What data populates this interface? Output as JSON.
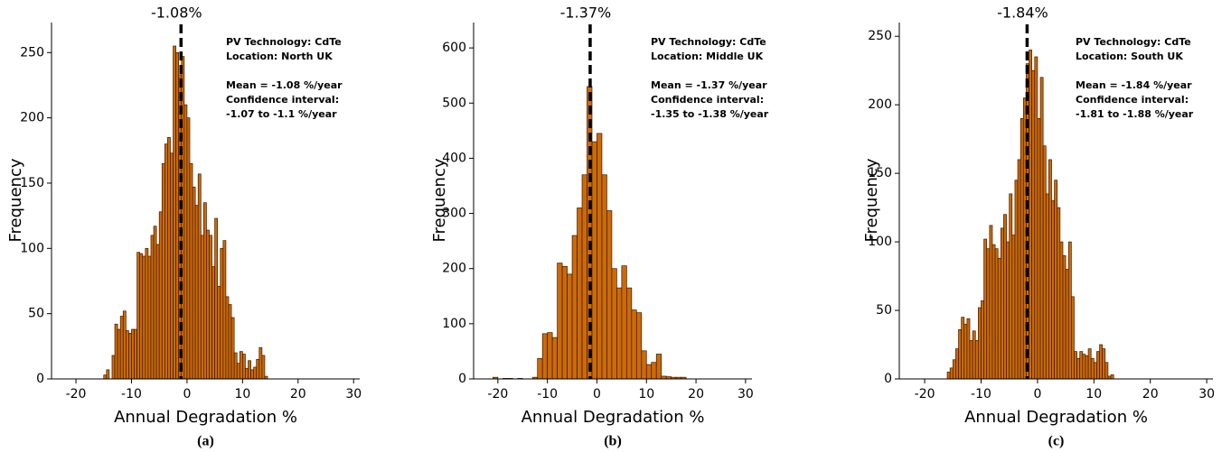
{
  "chart_data": [
    {
      "type": "histogram",
      "caption": "(a)",
      "xlabel": "Annual Degradation %",
      "ylabel": "Frequency",
      "mean": -1.08,
      "mean_label": "-1.08%",
      "annotations": [
        "PV Technology: CdTe",
        "Location: North UK",
        "Mean = -1.08 %/year",
        "Confidence interval:",
        "-1.07 to -1.1 %/year"
      ],
      "color": "#cc6a0a",
      "bins": [
        -15,
        -14.5,
        -14,
        -13.5,
        -13,
        -12.5,
        -12,
        -11.5,
        -11,
        -10.5,
        -10,
        -9.5,
        -9,
        -8.5,
        -8,
        -7.5,
        -7,
        -6.5,
        -6,
        -5.5,
        -5,
        -4.5,
        -4,
        -3.5,
        -3,
        -2.5,
        -2,
        -1.5,
        -1,
        -0.5,
        0,
        0.5,
        1,
        1.5,
        2,
        2.5,
        3,
        3.5,
        4,
        4.5,
        5,
        5.5,
        6,
        6.5,
        7,
        7.5,
        8,
        8.5,
        9,
        9.5,
        10,
        10.5,
        11,
        11.5,
        12,
        12.5,
        13,
        13.5,
        14,
        14.5
      ],
      "counts": [
        3,
        7,
        0,
        18,
        42,
        38,
        48,
        52,
        37,
        35,
        38,
        38,
        97,
        96,
        94,
        100,
        94,
        110,
        117,
        103,
        128,
        165,
        180,
        185,
        173,
        255,
        250,
        233,
        247,
        210,
        200,
        165,
        147,
        133,
        157,
        110,
        135,
        114,
        110,
        86,
        123,
        71,
        100,
        106,
        63,
        57,
        47,
        20,
        12,
        21,
        19,
        8,
        14,
        7,
        9,
        15,
        24,
        18,
        2
      ],
      "xlim": [
        -24.4,
        31.1
      ],
      "ylim": [
        0,
        273
      ],
      "xticks": [
        -20,
        -10,
        0,
        10,
        20,
        30
      ],
      "yticks": [
        0,
        50,
        100,
        150,
        200,
        250
      ]
    },
    {
      "type": "histogram",
      "caption": "(b)",
      "xlabel": "Annual Degradation %",
      "ylabel": "Frequency",
      "mean": -1.37,
      "mean_label": "-1.37%",
      "annotations": [
        "PV Technology: CdTe",
        "Location: Middle UK",
        "Mean = -1.37 %/year",
        "Confidence interval:",
        "-1.35 to -1.38 %/year"
      ],
      "color": "#cc6a0a",
      "bins": [
        -21,
        -20,
        -19,
        -18,
        -17,
        -16,
        -15,
        -14,
        -13,
        -12,
        -11,
        -10,
        -9,
        -8,
        -7,
        -6,
        -5,
        -4,
        -3,
        -2,
        -1,
        0,
        1,
        2,
        3,
        4,
        5,
        6,
        7,
        8,
        9,
        10,
        11,
        12,
        13,
        14,
        15,
        16,
        17,
        18
      ],
      "counts": [
        3,
        0,
        1,
        1,
        0,
        1,
        0,
        0,
        3,
        37,
        82,
        84,
        75,
        210,
        204,
        190,
        260,
        310,
        370,
        530,
        430,
        445,
        370,
        305,
        200,
        165,
        205,
        165,
        125,
        120,
        51,
        26,
        30,
        45,
        5,
        4,
        3,
        3,
        3
      ],
      "xlim": [
        -24.9,
        31.3
      ],
      "ylim": [
        0,
        646
      ],
      "xticks": [
        -20,
        -10,
        0,
        10,
        20,
        30
      ],
      "yticks": [
        0,
        100,
        200,
        300,
        400,
        500,
        600
      ]
    },
    {
      "type": "histogram",
      "caption": "(c)",
      "xlabel": "Annual Degradation %",
      "ylabel": "Frequency",
      "mean": -1.84,
      "mean_label": "-1.84%",
      "annotations": [
        "PV Technology: CdTe",
        "Location: South UK",
        "Mean = -1.84 %/year",
        "Confidence interval:",
        "-1.81 to -1.88 %/year"
      ],
      "color": "#cc6a0a",
      "bins": [
        -16,
        -15.5,
        -15,
        -14.5,
        -14,
        -13.5,
        -13,
        -12.5,
        -12,
        -11.5,
        -11,
        -10.5,
        -10,
        -9.5,
        -9,
        -8.5,
        -8,
        -7.5,
        -7,
        -6.5,
        -6,
        -5.5,
        -5,
        -4.5,
        -4,
        -3.5,
        -3,
        -2.5,
        -2,
        -1.5,
        -1,
        -0.5,
        0,
        0.5,
        1,
        1.5,
        2,
        2.5,
        3,
        3.5,
        4,
        4.5,
        5,
        5.5,
        6,
        6.5,
        7,
        7.5,
        8,
        8.5,
        9,
        9.5,
        10,
        10.5,
        11,
        11.5,
        12,
        12.5,
        13,
        13.5
      ],
      "counts": [
        5,
        8,
        14,
        22,
        36,
        45,
        40,
        44,
        28,
        35,
        28,
        52,
        57,
        102,
        95,
        112,
        98,
        95,
        88,
        110,
        120,
        100,
        135,
        105,
        145,
        160,
        190,
        205,
        230,
        240,
        225,
        235,
        190,
        220,
        170,
        135,
        160,
        130,
        145,
        125,
        100,
        90,
        80,
        100,
        60,
        20,
        15,
        20,
        18,
        17,
        22,
        15,
        12,
        20,
        25,
        22,
        12,
        2,
        3
      ],
      "xlim": [
        -24.5,
        31.1
      ],
      "ylim": [
        0,
        260
      ],
      "xticks": [
        -20,
        -10,
        0,
        10,
        20,
        30
      ],
      "yticks": [
        0,
        50,
        100,
        150,
        200,
        250
      ]
    }
  ]
}
